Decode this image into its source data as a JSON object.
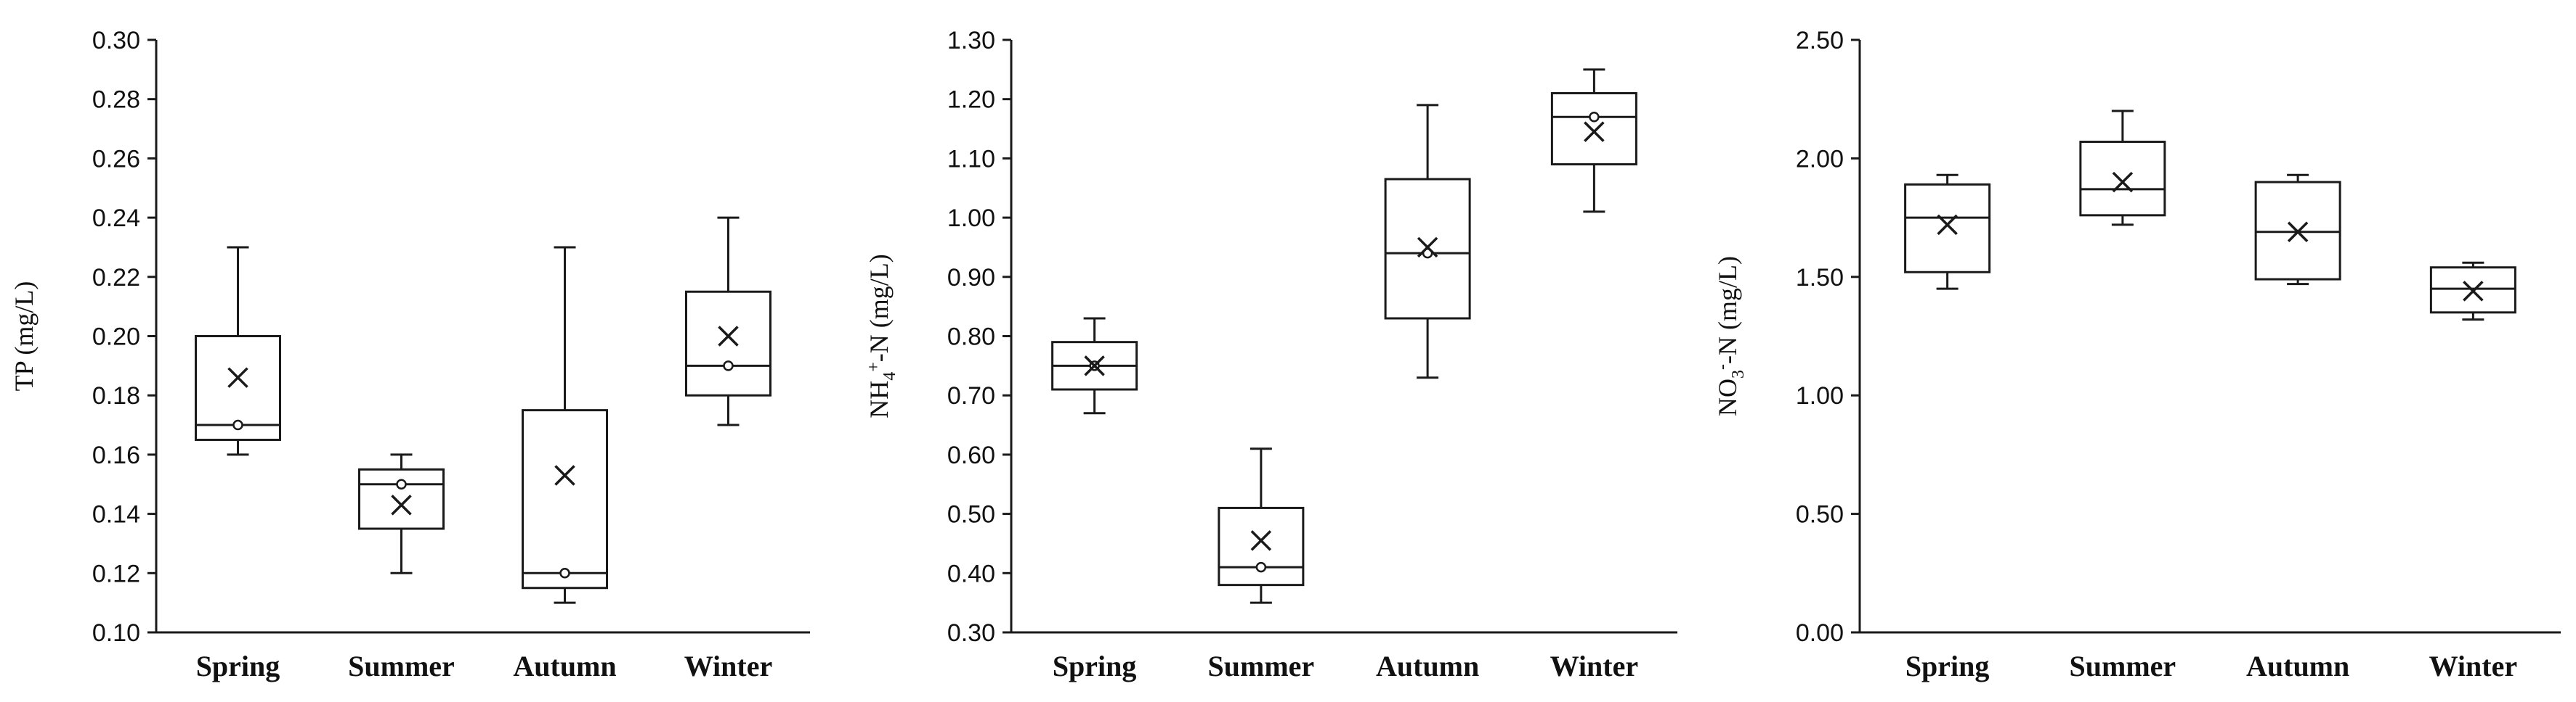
{
  "chart_data": [
    {
      "type": "box",
      "ylabel": {
        "pre": "TP (mg/L)",
        "sup": "",
        "sub": "",
        "post": ""
      },
      "ylim": [
        0.1,
        0.3
      ],
      "ytick_step": 0.02,
      "ytick_labels": [
        "0.10",
        "0.12",
        "0.14",
        "0.16",
        "0.18",
        "0.20",
        "0.22",
        "0.24",
        "0.26",
        "0.28",
        "0.30"
      ],
      "categories": [
        "Spring",
        "Summer",
        "Autumn",
        "Winter"
      ],
      "boxes": [
        {
          "min": 0.16,
          "q1": 0.165,
          "median": 0.17,
          "q3": 0.2,
          "max": 0.23,
          "mean": 0.186,
          "point": 0.17
        },
        {
          "min": 0.12,
          "q1": 0.135,
          "median": 0.15,
          "q3": 0.155,
          "max": 0.16,
          "mean": 0.143,
          "point": 0.15
        },
        {
          "min": 0.11,
          "q1": 0.115,
          "median": 0.12,
          "q3": 0.175,
          "max": 0.23,
          "mean": 0.153,
          "point": 0.12
        },
        {
          "min": 0.17,
          "q1": 0.18,
          "median": 0.19,
          "q3": 0.215,
          "max": 0.24,
          "mean": 0.2,
          "point": 0.19
        }
      ]
    },
    {
      "type": "box",
      "ylabel": {
        "pre": "NH",
        "sub": "4",
        "sup": "+",
        "post": "-N (mg/L)"
      },
      "ylim": [
        0.3,
        1.3
      ],
      "ytick_step": 0.1,
      "ytick_labels": [
        "0.30",
        "0.40",
        "0.50",
        "0.60",
        "0.70",
        "0.80",
        "0.90",
        "1.00",
        "1.10",
        "1.20",
        "1.30"
      ],
      "categories": [
        "Spring",
        "Summer",
        "Autumn",
        "Winter"
      ],
      "boxes": [
        {
          "min": 0.67,
          "q1": 0.71,
          "median": 0.75,
          "q3": 0.79,
          "max": 0.83,
          "mean": 0.75,
          "point": 0.75
        },
        {
          "min": 0.35,
          "q1": 0.38,
          "median": 0.41,
          "q3": 0.51,
          "max": 0.61,
          "mean": 0.455,
          "point": 0.41
        },
        {
          "min": 0.73,
          "q1": 0.83,
          "median": 0.94,
          "q3": 1.065,
          "max": 1.19,
          "mean": 0.95,
          "point": 0.94
        },
        {
          "min": 1.01,
          "q1": 1.09,
          "median": 1.17,
          "q3": 1.21,
          "max": 1.25,
          "mean": 1.145,
          "point": 1.17
        }
      ]
    },
    {
      "type": "box",
      "ylabel": {
        "pre": "NO",
        "sub": "3",
        "sup": "-",
        "post": "-N (mg/L)"
      },
      "ylim": [
        0.0,
        2.5
      ],
      "ytick_step": 0.5,
      "ytick_labels": [
        "0.00",
        "0.50",
        "1.00",
        "1.50",
        "2.00",
        "2.50"
      ],
      "categories": [
        "Spring",
        "Summer",
        "Autumn",
        "Winter"
      ],
      "boxes": [
        {
          "min": 1.45,
          "q1": 1.52,
          "median": 1.75,
          "q3": 1.89,
          "max": 1.93,
          "mean": 1.72,
          "point": null
        },
        {
          "min": 1.72,
          "q1": 1.76,
          "median": 1.87,
          "q3": 2.07,
          "max": 2.2,
          "mean": 1.9,
          "point": null
        },
        {
          "min": 1.47,
          "q1": 1.49,
          "median": 1.69,
          "q3": 1.9,
          "max": 1.93,
          "mean": 1.69,
          "point": null
        },
        {
          "min": 1.32,
          "q1": 1.35,
          "median": 1.45,
          "q3": 1.54,
          "max": 1.56,
          "mean": 1.44,
          "point": null
        }
      ]
    }
  ]
}
